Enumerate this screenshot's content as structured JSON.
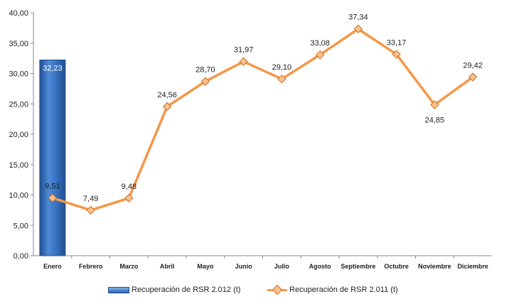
{
  "chart_data": {
    "type": "bar+line",
    "categories": [
      "Enero",
      "Febrero",
      "Marzo",
      "Abril",
      "Mayo",
      "Junio",
      "Julio",
      "Agosto",
      "Septiembre",
      "Octubre",
      "Noviembre",
      "Diciembre"
    ],
    "series": [
      {
        "name": "Recuperación de RSR 2.012 (t)",
        "type": "bar",
        "color": "#2a64b3",
        "values": [
          32.23,
          null,
          null,
          null,
          null,
          null,
          null,
          null,
          null,
          null,
          null,
          null
        ],
        "labels": [
          "32,23",
          "",
          "",
          "",
          "",
          "",
          "",
          "",
          "",
          "",
          "",
          ""
        ]
      },
      {
        "name": "Recuperación de RSR 2.011 (t)",
        "type": "line",
        "color": "#f79646",
        "values": [
          9.51,
          7.49,
          9.48,
          24.56,
          28.7,
          31.97,
          29.1,
          33.08,
          37.34,
          33.17,
          24.85,
          29.42
        ],
        "labels": [
          "9,51",
          "7,49",
          "9,48",
          "24,56",
          "28,70",
          "31,97",
          "29,10",
          "33,08",
          "37,34",
          "33,17",
          "24,85",
          "29,42"
        ]
      }
    ],
    "yticks": [
      "0,00",
      "5,00",
      "10,00",
      "15,00",
      "20,00",
      "25,00",
      "30,00",
      "35,00",
      "40,00"
    ],
    "ylim": [
      0,
      40
    ],
    "grid": false,
    "legend_position": "bottom"
  }
}
